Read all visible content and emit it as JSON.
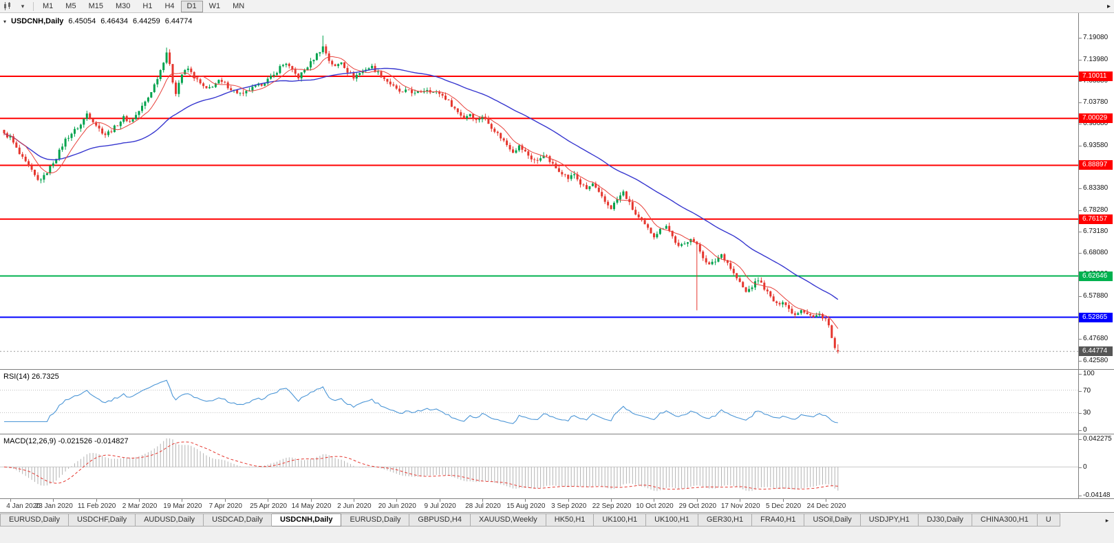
{
  "toolbar": {
    "timeframes": [
      "M1",
      "M5",
      "M15",
      "M30",
      "H1",
      "H4",
      "D1",
      "W1",
      "MN"
    ],
    "active_timeframe": "D1"
  },
  "chart_header": {
    "symbol": "USDCNH,Daily",
    "open": "6.45054",
    "high": "6.46434",
    "low": "6.44259",
    "close": "6.44774"
  },
  "main_chart": {
    "price_axis_labels": [
      "7.19080",
      "7.13980",
      "7.08880",
      "7.03780",
      "6.98680",
      "6.93580",
      "6.88480",
      "6.83380",
      "6.78280",
      "6.73180",
      "6.68080",
      "6.62980",
      "6.57880",
      "6.52780",
      "6.47680",
      "6.42580"
    ],
    "hlines": [
      {
        "price": 7.10011,
        "label": "7.10011",
        "color": "#ff0000"
      },
      {
        "price": 7.00029,
        "label": "7.00029",
        "color": "#ff0000"
      },
      {
        "price": 6.88897,
        "label": "6.88897",
        "color": "#ff0000"
      },
      {
        "price": 6.76157,
        "label": "6.76157",
        "color": "#ff0000"
      },
      {
        "price": 6.62646,
        "label": "6.62646",
        "color": "#00b14f"
      },
      {
        "price": 6.52865,
        "label": "6.52865",
        "color": "#0000ff"
      }
    ],
    "current_price": {
      "value": 6.44774,
      "label": "6.44774",
      "tag_bg": "#565656",
      "line_color": "#9a9a9a"
    }
  },
  "chart_data": {
    "type": "candlestick",
    "symbol": "USDCNH",
    "timeframe": "Daily",
    "title": "USDCNH,Daily",
    "ylim": [
      6.405,
      7.25
    ],
    "bars_total": 273,
    "label_start_bar": 2,
    "label_every": 14,
    "x_labels": [
      "4 Jan 2020",
      "23 Jan 2020",
      "11 Feb 2020",
      "2 Mar 2020",
      "19 Mar 2020",
      "7 Apr 2020",
      "25 Apr 2020",
      "14 May 2020",
      "2 Jun 2020",
      "20 Jun 2020",
      "9 Jul 2020",
      "28 Jul 2020",
      "15 Aug 2020",
      "3 Sep 2020",
      "22 Sep 2020",
      "10 Oct 2020",
      "29 Oct 2020",
      "17 Nov 2020",
      "5 Dec 2020",
      "24 Dec 2020"
    ],
    "price_anchors": [
      [
        0,
        6.962
      ],
      [
        2,
        6.955
      ],
      [
        5,
        6.915
      ],
      [
        8,
        6.885
      ],
      [
        11,
        6.853
      ],
      [
        13,
        6.862
      ],
      [
        15,
        6.885
      ],
      [
        17,
        6.908
      ],
      [
        20,
        6.95
      ],
      [
        23,
        6.972
      ],
      [
        25,
        6.985
      ],
      [
        27,
        7.012
      ],
      [
        29,
        6.995
      ],
      [
        31,
        6.975
      ],
      [
        33,
        6.962
      ],
      [
        35,
        6.972
      ],
      [
        37,
        6.986
      ],
      [
        39,
        7.002
      ],
      [
        41,
        6.992
      ],
      [
        43,
        7.008
      ],
      [
        45,
        7.028
      ],
      [
        47,
        7.05
      ],
      [
        49,
        7.08
      ],
      [
        51,
        7.115
      ],
      [
        53,
        7.158
      ],
      [
        54,
        7.125
      ],
      [
        55,
        7.088
      ],
      [
        56,
        7.062
      ],
      [
        57,
        7.085
      ],
      [
        58,
        7.105
      ],
      [
        60,
        7.118
      ],
      [
        62,
        7.098
      ],
      [
        64,
        7.082
      ],
      [
        66,
        7.068
      ],
      [
        68,
        7.078
      ],
      [
        70,
        7.088
      ],
      [
        72,
        7.082
      ],
      [
        74,
        7.07
      ],
      [
        76,
        7.062
      ],
      [
        78,
        7.056
      ],
      [
        80,
        7.068
      ],
      [
        82,
        7.075
      ],
      [
        84,
        7.082
      ],
      [
        86,
        7.092
      ],
      [
        88,
        7.102
      ],
      [
        90,
        7.122
      ],
      [
        92,
        7.132
      ],
      [
        94,
        7.112
      ],
      [
        96,
        7.098
      ],
      [
        98,
        7.115
      ],
      [
        100,
        7.132
      ],
      [
        102,
        7.152
      ],
      [
        104,
        7.17
      ],
      [
        105,
        7.155
      ],
      [
        106,
        7.138
      ],
      [
        108,
        7.122
      ],
      [
        110,
        7.135
      ],
      [
        112,
        7.112
      ],
      [
        114,
        7.098
      ],
      [
        116,
        7.108
      ],
      [
        118,
        7.118
      ],
      [
        120,
        7.122
      ],
      [
        122,
        7.108
      ],
      [
        124,
        7.095
      ],
      [
        126,
        7.082
      ],
      [
        128,
        7.068
      ],
      [
        130,
        7.06
      ],
      [
        132,
        7.068
      ],
      [
        134,
        7.058
      ],
      [
        136,
        7.064
      ],
      [
        138,
        7.07
      ],
      [
        140,
        7.062
      ],
      [
        142,
        7.06
      ],
      [
        144,
        7.048
      ],
      [
        146,
        7.032
      ],
      [
        148,
        7.015
      ],
      [
        150,
        7.002
      ],
      [
        152,
        7.012
      ],
      [
        154,
        6.995
      ],
      [
        156,
        7.006
      ],
      [
        158,
        6.988
      ],
      [
        160,
        6.972
      ],
      [
        162,
        6.955
      ],
      [
        164,
        6.938
      ],
      [
        166,
        6.922
      ],
      [
        168,
        6.934
      ],
      [
        170,
        6.92
      ],
      [
        172,
        6.905
      ],
      [
        174,
        6.898
      ],
      [
        176,
        6.916
      ],
      [
        178,
        6.898
      ],
      [
        180,
        6.882
      ],
      [
        182,
        6.872
      ],
      [
        184,
        6.858
      ],
      [
        186,
        6.868
      ],
      [
        188,
        6.845
      ],
      [
        190,
        6.832
      ],
      [
        192,
        6.845
      ],
      [
        194,
        6.822
      ],
      [
        196,
        6.802
      ],
      [
        198,
        6.788
      ],
      [
        200,
        6.808
      ],
      [
        202,
        6.825
      ],
      [
        204,
        6.798
      ],
      [
        206,
        6.772
      ],
      [
        208,
        6.755
      ],
      [
        210,
        6.738
      ],
      [
        212,
        6.722
      ],
      [
        214,
        6.736
      ],
      [
        216,
        6.748
      ],
      [
        218,
        6.72
      ],
      [
        220,
        6.695
      ],
      [
        222,
        6.702
      ],
      [
        224,
        6.718
      ],
      [
        226,
        6.698
      ],
      [
        228,
        6.672
      ],
      [
        230,
        6.652
      ],
      [
        232,
        6.662
      ],
      [
        234,
        6.678
      ],
      [
        236,
        6.658
      ],
      [
        238,
        6.632
      ],
      [
        240,
        6.61
      ],
      [
        242,
        6.588
      ],
      [
        244,
        6.602
      ],
      [
        246,
        6.618
      ],
      [
        248,
        6.598
      ],
      [
        250,
        6.576
      ],
      [
        252,
        6.558
      ],
      [
        254,
        6.568
      ],
      [
        256,
        6.548
      ],
      [
        258,
        6.535
      ],
      [
        260,
        6.548
      ],
      [
        262,
        6.538
      ],
      [
        264,
        6.528
      ],
      [
        266,
        6.535
      ],
      [
        268,
        6.525
      ],
      [
        269,
        6.508
      ],
      [
        270,
        6.478
      ],
      [
        271,
        6.455
      ],
      [
        272,
        6.448
      ]
    ],
    "special_wicks": [
      {
        "bar": 53,
        "high": 7.168
      },
      {
        "bar": 104,
        "high": 7.1965
      },
      {
        "bar": 226,
        "low": 6.545
      }
    ],
    "last_ohlc": {
      "o": 6.45054,
      "h": 6.46434,
      "l": 6.44259,
      "c": 6.44774
    },
    "up_color": "#00a24d",
    "down_color": "#e5362e",
    "ma_fast": {
      "period": 8,
      "color": "#e8403a"
    },
    "ma_slow": {
      "period": 40,
      "color": "#3636cf"
    }
  },
  "rsi_panel": {
    "label": "RSI(14) 26.7325",
    "period": 14,
    "current": 26.7325,
    "line_color": "#4a95d6",
    "level_line_color": "#bdbdbd",
    "levels": [
      70,
      30
    ],
    "scale": [
      {
        "label": "100",
        "value": 100
      },
      {
        "label": "70",
        "value": 70
      },
      {
        "label": "30",
        "value": 30
      },
      {
        "label": "0",
        "value": 0
      }
    ]
  },
  "macd_panel": {
    "label": "MACD(12,26,9) -0.021526 -0.014827",
    "fast": 12,
    "slow": 26,
    "signal": 9,
    "macd_current": -0.021526,
    "signal_current": -0.014827,
    "histogram_color": "#b3b3b3",
    "signal_color": "#e5362e",
    "zero_line_color": "#c9c9c9",
    "scale": [
      {
        "label": "0.042275",
        "value": 0.042275
      },
      {
        "label": "0",
        "value": 0
      },
      {
        "label": "-0.04148",
        "value": -0.04148
      }
    ]
  },
  "tab_bar": {
    "tabs": [
      "EURUSD,Daily",
      "USDCHF,Daily",
      "AUDUSD,Daily",
      "USDCAD,Daily",
      "USDCNH,Daily",
      "EURUSD,Daily",
      "GBPUSD,H4",
      "XAUUSD,Weekly",
      "HK50,H1",
      "UK100,H1",
      "UK100,H1",
      "GER30,H1",
      "FRA40,H1",
      "USOil,Daily",
      "USDJPY,H1",
      "DJ30,Daily",
      "CHINA300,H1"
    ],
    "active_index": 4,
    "overflow_label": "U",
    "scroll_right_glyph": "▸"
  }
}
